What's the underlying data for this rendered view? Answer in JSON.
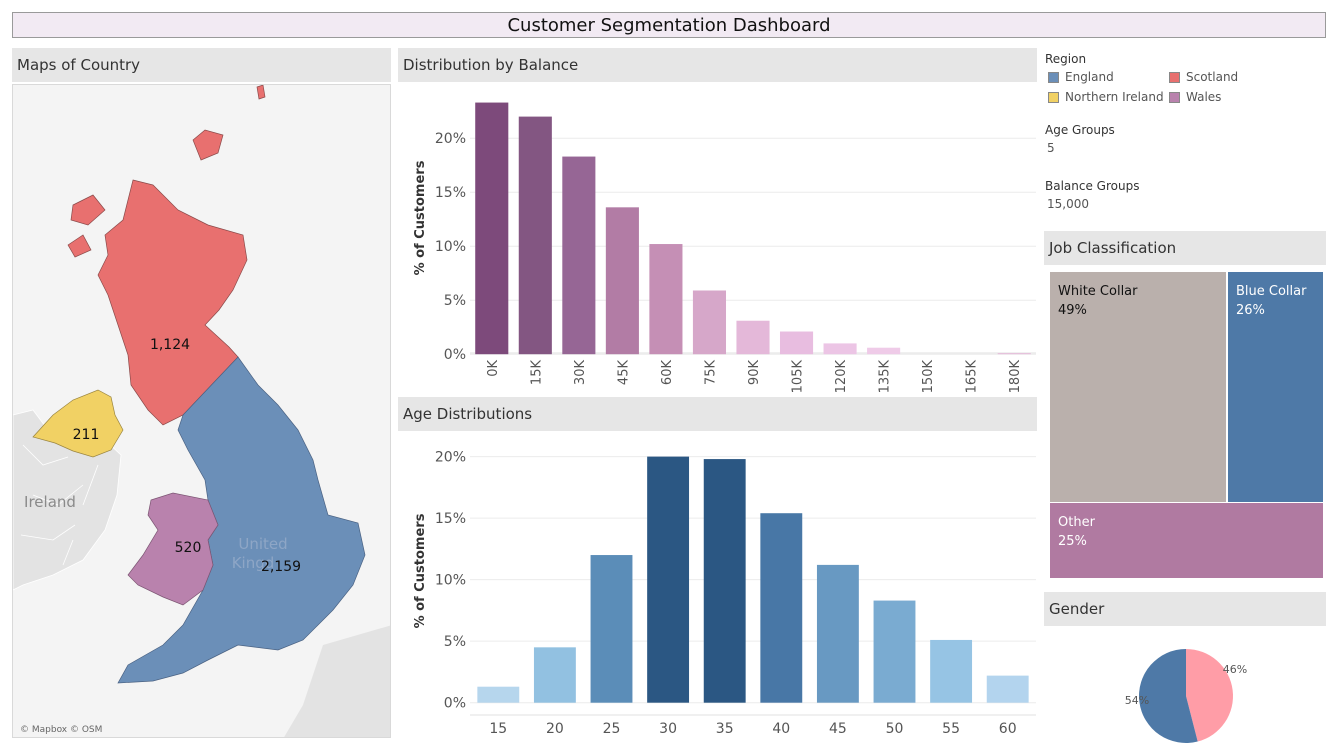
{
  "dashboard": {
    "title": "Customer Segmentation Dashboard"
  },
  "map_panel": {
    "header": "Maps of Country",
    "labels": {
      "scotland_count": "1,124",
      "northern_ireland_count": "211",
      "wales_count": "520",
      "england_count": "2,159",
      "ireland": "Ireland",
      "uk_line1": "United",
      "uk_line2": "Kingd"
    },
    "attribution": "© Mapbox © OSM",
    "colors": {
      "england": "#6b8fb8",
      "scotland": "#e8706f",
      "northern_ireland": "#f1d164",
      "wales": "#b982ad",
      "background_land": "#e1e1e1",
      "sea": "#f4f4f4"
    }
  },
  "legend": {
    "title": "Region",
    "items": [
      {
        "label": "England",
        "color": "#4e79a7"
      },
      {
        "label": "Scotland",
        "color": "#e15759"
      },
      {
        "label": "Northern Ireland",
        "color": "#edc948"
      },
      {
        "label": "Wales",
        "color": "#b07aa1"
      }
    ]
  },
  "parameters": {
    "age_groups_label": "Age Groups",
    "age_groups_value": "5",
    "balance_groups_label": "Balance Groups",
    "balance_groups_value": "15,000"
  },
  "job_panel": {
    "header": "Job Classification",
    "cells": [
      {
        "label": "White Collar",
        "pct": "49%",
        "color": "#bab0ac"
      },
      {
        "label": "Blue Collar",
        "pct": "26%",
        "color": "#4e79a7"
      },
      {
        "label": "Other",
        "pct": "25%",
        "color": "#b07aa1"
      }
    ]
  },
  "gender_panel": {
    "header": "Gender",
    "labels": [
      "54%",
      "46%"
    ]
  },
  "balance_panel": {
    "header": "Distribution by Balance"
  },
  "age_panel": {
    "header": "Age Distributions"
  },
  "chart_data": [
    {
      "type": "bar",
      "title": "Distribution by Balance",
      "ylabel": "% of Customers",
      "xlabel": "",
      "categories": [
        "0K",
        "15K",
        "30K",
        "45K",
        "60K",
        "75K",
        "90K",
        "105K",
        "120K",
        "135K",
        "150K",
        "165K",
        "180K"
      ],
      "values": [
        23.3,
        22.0,
        18.3,
        13.6,
        10.2,
        5.9,
        3.1,
        2.1,
        1.0,
        0.6,
        0.0,
        0.0,
        0.1
      ],
      "unit": "%",
      "ylim": [
        -1,
        24
      ],
      "yticks": [
        0,
        5,
        10,
        15,
        20
      ],
      "ytick_labels": [
        "0%",
        "5%",
        "10%",
        "15%",
        "20%"
      ],
      "grid": true,
      "colors": [
        "#7d4a7b",
        "#835682",
        "#966695",
        "#b27ca5",
        "#c58fb5",
        "#d6a7c9",
        "#e4b8d9",
        "#e8bde0",
        "#ecc5e5",
        "#efcbe8",
        "#f1d1eb",
        "#f3d6ed",
        "#e6bedb"
      ]
    },
    {
      "type": "bar",
      "title": "Age Distributions",
      "ylabel": "% of Customers",
      "xlabel": "",
      "categories": [
        "15",
        "20",
        "25",
        "30",
        "35",
        "40",
        "45",
        "50",
        "55",
        "60"
      ],
      "values": [
        1.3,
        4.5,
        12.0,
        20.0,
        19.8,
        15.4,
        11.2,
        8.3,
        5.1,
        2.2
      ],
      "unit": "%",
      "ylim": [
        -1,
        20.7
      ],
      "yticks": [
        0,
        5,
        10,
        15,
        20
      ],
      "ytick_labels": [
        "0%",
        "5%",
        "10%",
        "15%",
        "20%"
      ],
      "grid": true,
      "colors": [
        "#b6d6ed",
        "#92c1e1",
        "#5b8db8",
        "#2b5783",
        "#2b5783",
        "#4877a6",
        "#6899c2",
        "#7aabd1",
        "#96c4e4",
        "#b3d4ee"
      ]
    },
    {
      "type": "pie",
      "title": "Gender",
      "categories": [
        "",
        ""
      ],
      "values": [
        54,
        46
      ],
      "colors": [
        "#4e79a7",
        "#ff9da7"
      ]
    }
  ]
}
